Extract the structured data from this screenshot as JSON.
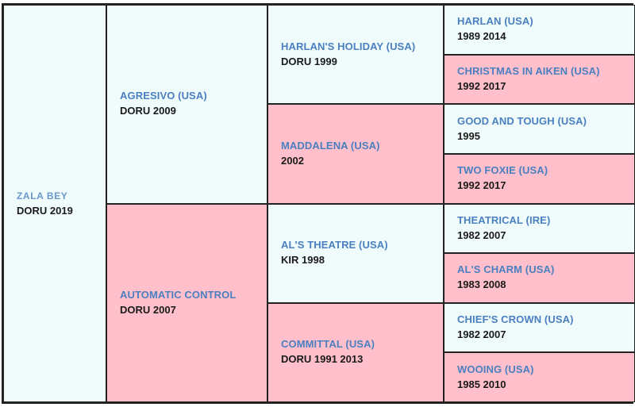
{
  "horse": {
    "name": "ZALA BEY",
    "info": "DORU 2019"
  },
  "sire": {
    "name": "AGRESIVO (USA)",
    "info": "DORU 2009"
  },
  "dam": {
    "name": "AUTOMATIC CONTROL",
    "info": "DORU 2007"
  },
  "sire_sire": {
    "name": "HARLAN'S HOLIDAY (USA)",
    "info": "DORU 1999"
  },
  "sire_dam": {
    "name": "MADDALENA (USA)",
    "info": "2002"
  },
  "dam_sire": {
    "name": "AL'S THEATRE (USA)",
    "info": "KIR 1998"
  },
  "dam_dam": {
    "name": "COMMITTAL (USA)",
    "info": "DORU 1991 2013"
  },
  "gen4": [
    {
      "name": "HARLAN (USA)",
      "info": "1989 2014"
    },
    {
      "name": "CHRISTMAS IN AIKEN (USA)",
      "info": "1992 2017"
    },
    {
      "name": "GOOD AND TOUGH (USA)",
      "info": "1995"
    },
    {
      "name": "TWO FOXIE (USA)",
      "info": "1992 2017"
    },
    {
      "name": "THEATRICAL (IRE)",
      "info": "1982 2007"
    },
    {
      "name": "AL'S CHARM (USA)",
      "info": "1983 2008"
    },
    {
      "name": "CHIEF'S CROWN (USA)",
      "info": "1982 2007"
    },
    {
      "name": "WOOING (USA)",
      "info": "1985 2010"
    }
  ],
  "colors": {
    "male_bg": "#f0fcfc",
    "female_bg": "#ffc0cb",
    "name_text": "#4a7fc0",
    "border": "#222222"
  }
}
